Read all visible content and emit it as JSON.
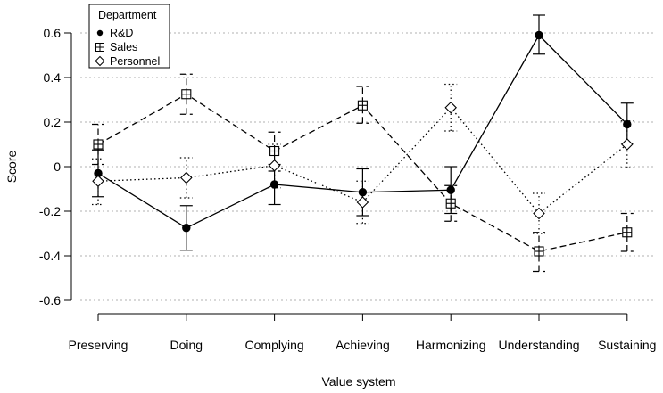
{
  "chart_data": {
    "type": "line",
    "title": "",
    "xlabel": "Value system",
    "ylabel": "Score",
    "ylim": [
      -0.65,
      0.65
    ],
    "yticks": [
      -0.6,
      -0.4,
      -0.2,
      0,
      0.2,
      0.4,
      0.6
    ],
    "ytick_labels": [
      "-0.6",
      "-0.4",
      "-0.2",
      "0",
      "0.2",
      "0.4",
      "0.6"
    ],
    "grid": "horizontal dotted at y ticks",
    "categories": [
      "Preserving",
      "Doing",
      "Complying",
      "Achieving",
      "Harmonizing",
      "Understanding",
      "Sustaining"
    ],
    "legend": {
      "title": "Department",
      "position": "top-left",
      "entries": [
        "R&D",
        "Sales",
        "Personnel"
      ]
    },
    "series": [
      {
        "name": "R&D",
        "marker": "filled-circle",
        "line_style": "solid",
        "values": [
          -0.03,
          -0.275,
          -0.08,
          -0.115,
          -0.105,
          0.59,
          0.19
        ],
        "lower": [
          -0.135,
          -0.375,
          -0.17,
          -0.22,
          -0.21,
          0.505,
          0.105
        ],
        "upper": [
          0.075,
          -0.175,
          0.01,
          -0.01,
          0.0,
          0.68,
          0.285
        ]
      },
      {
        "name": "Sales",
        "marker": "boxed-plus",
        "line_style": "dashed",
        "values": [
          0.1,
          0.325,
          0.07,
          0.275,
          -0.165,
          -0.38,
          -0.295
        ],
        "lower": [
          0.01,
          0.235,
          -0.02,
          0.195,
          -0.245,
          -0.47,
          -0.38
        ],
        "upper": [
          0.19,
          0.415,
          0.155,
          0.36,
          -0.085,
          -0.295,
          -0.21
        ]
      },
      {
        "name": "Personnel",
        "marker": "open-diamond",
        "line_style": "dotted",
        "values": [
          -0.065,
          -0.05,
          0.005,
          -0.16,
          0.265,
          -0.21,
          0.1
        ],
        "lower": [
          -0.17,
          -0.14,
          -0.095,
          -0.255,
          0.16,
          -0.3,
          -0.005
        ],
        "upper": [
          0.035,
          0.04,
          0.1,
          -0.065,
          0.37,
          -0.12,
          0.205
        ]
      }
    ]
  }
}
